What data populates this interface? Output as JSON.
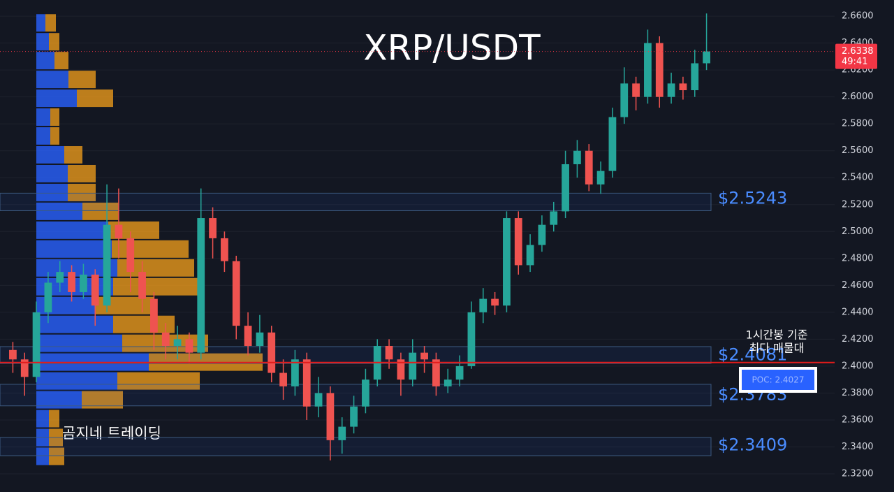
{
  "chart_data": {
    "type": "candlestick",
    "title": "XRP/USDT",
    "ylim": [
      2.3065,
      2.672
    ],
    "yticks": [
      {
        "value": 2.66,
        "label": "2.6600"
      },
      {
        "value": 2.64,
        "label": "2.6400"
      },
      {
        "value": 2.62,
        "label": "2.6200"
      },
      {
        "value": 2.6,
        "label": "2.6000"
      },
      {
        "value": 2.58,
        "label": "2.5800"
      },
      {
        "value": 2.56,
        "label": "2.5600"
      },
      {
        "value": 2.54,
        "label": "2.5400"
      },
      {
        "value": 2.52,
        "label": "2.5200"
      },
      {
        "value": 2.5,
        "label": "2.5000"
      },
      {
        "value": 2.48,
        "label": "2.4800"
      },
      {
        "value": 2.46,
        "label": "2.4600"
      },
      {
        "value": 2.44,
        "label": "2.4400"
      },
      {
        "value": 2.42,
        "label": "2.4200"
      },
      {
        "value": 2.4,
        "label": "2.4000"
      },
      {
        "value": 2.38,
        "label": "2.3800"
      },
      {
        "value": 2.36,
        "label": "2.3600"
      },
      {
        "value": 2.34,
        "label": "2.3400"
      },
      {
        "value": 2.32,
        "label": "2.3200"
      }
    ],
    "up_color": "#26a69a",
    "down_color": "#ef5350",
    "open": [
      2.412,
      2.405,
      2.392,
      2.44,
      2.462,
      2.47,
      2.455,
      2.468,
      2.445,
      2.505,
      2.495,
      2.47,
      2.45,
      2.425,
      2.415,
      2.42,
      2.41,
      2.51,
      2.495,
      2.478,
      2.43,
      2.415,
      2.425,
      2.395,
      2.385,
      2.405,
      2.37,
      2.38,
      2.345,
      2.355,
      2.37,
      2.39,
      2.415,
      2.405,
      2.39,
      2.41,
      2.405,
      2.385,
      2.39,
      2.4,
      2.44,
      2.45,
      2.445,
      2.51,
      2.475,
      2.49,
      2.505,
      2.515,
      2.55,
      2.56,
      2.535,
      2.545,
      2.585,
      2.61,
      2.6,
      2.64,
      2.6,
      2.61,
      2.605,
      2.625
    ],
    "high": [
      2.418,
      2.41,
      2.448,
      2.47,
      2.478,
      2.475,
      2.476,
      2.472,
      2.535,
      2.532,
      2.5,
      2.478,
      2.455,
      2.432,
      2.43,
      2.425,
      2.532,
      2.518,
      2.5,
      2.482,
      2.44,
      2.438,
      2.43,
      2.405,
      2.412,
      2.41,
      2.392,
      2.385,
      2.362,
      2.378,
      2.398,
      2.42,
      2.42,
      2.41,
      2.42,
      2.415,
      2.41,
      2.398,
      2.408,
      2.448,
      2.458,
      2.455,
      2.515,
      2.515,
      2.498,
      2.512,
      2.522,
      2.56,
      2.568,
      2.565,
      2.552,
      2.592,
      2.622,
      2.615,
      2.65,
      2.645,
      2.618,
      2.615,
      2.635,
      2.662
    ],
    "low": [
      2.395,
      2.378,
      2.388,
      2.432,
      2.455,
      2.448,
      2.45,
      2.43,
      2.44,
      2.48,
      2.455,
      2.44,
      2.412,
      2.405,
      2.405,
      2.402,
      2.405,
      2.48,
      2.47,
      2.42,
      2.408,
      2.41,
      2.388,
      2.375,
      2.378,
      2.36,
      2.362,
      2.33,
      2.335,
      2.35,
      2.365,
      2.385,
      2.398,
      2.378,
      2.385,
      2.395,
      2.378,
      2.38,
      2.385,
      2.398,
      2.432,
      2.438,
      2.44,
      2.468,
      2.47,
      2.485,
      2.5,
      2.51,
      2.54,
      2.53,
      2.528,
      2.54,
      2.58,
      2.59,
      2.595,
      2.592,
      2.595,
      2.598,
      2.6,
      2.62
    ],
    "close": [
      2.405,
      2.392,
      2.44,
      2.462,
      2.47,
      2.455,
      2.468,
      2.445,
      2.505,
      2.495,
      2.47,
      2.45,
      2.425,
      2.415,
      2.42,
      2.41,
      2.51,
      2.495,
      2.478,
      2.43,
      2.415,
      2.425,
      2.395,
      2.385,
      2.405,
      2.37,
      2.38,
      2.345,
      2.355,
      2.37,
      2.39,
      2.415,
      2.405,
      2.39,
      2.41,
      2.405,
      2.385,
      2.39,
      2.4,
      2.44,
      2.45,
      2.445,
      2.51,
      2.475,
      2.49,
      2.505,
      2.515,
      2.55,
      2.56,
      2.535,
      2.545,
      2.585,
      2.61,
      2.6,
      2.64,
      2.6,
      2.61,
      2.605,
      2.625,
      2.6338
    ],
    "last_price": {
      "value": 2.6338,
      "label": "2.6338",
      "countdown": "49:41",
      "color": "#f23645"
    },
    "volume_profile": {
      "levels": [
        2.655,
        2.641,
        2.627,
        2.613,
        2.599,
        2.585,
        2.571,
        2.557,
        2.543,
        2.529,
        2.515,
        2.501,
        2.487,
        2.473,
        2.459,
        2.445,
        2.431,
        2.417,
        2.403,
        2.389,
        2.375,
        2.361,
        2.347,
        2.333
      ],
      "buy": [
        13,
        18,
        26,
        46,
        58,
        20,
        20,
        40,
        45,
        45,
        66,
        103,
        108,
        116,
        110,
        84,
        110,
        123,
        161,
        116,
        65,
        18,
        18,
        18
      ],
      "sell": [
        15,
        15,
        20,
        39,
        52,
        13,
        13,
        26,
        40,
        40,
        52,
        73,
        110,
        110,
        126,
        84,
        88,
        123,
        163,
        118,
        59,
        15,
        20,
        22
      ],
      "buy_color": "#2962ff",
      "sell_color": "#f7a21b"
    },
    "zones": [
      {
        "value": 2.5243,
        "label": "$2.5243",
        "top": 2.5285,
        "bottom": 2.5155
      },
      {
        "value": 2.4081,
        "label": "$2.4081",
        "top": 2.4145,
        "bottom": 2.402
      },
      {
        "value": 2.3783,
        "label": "$2.3783",
        "top": 2.3865,
        "bottom": 2.3705
      },
      {
        "value": 2.3409,
        "label": "$2.3409",
        "top": 2.347,
        "bottom": 2.3335
      }
    ],
    "poc": {
      "value": 2.4027,
      "label": "POC: 2.4027",
      "note": [
        "1시간봉 기준",
        "최다 매물대"
      ],
      "color": "#e21b1b"
    },
    "watermark": "곰지네 트레이딩"
  }
}
